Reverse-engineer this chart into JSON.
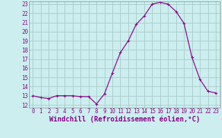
{
  "hours": [
    0,
    1,
    2,
    3,
    4,
    5,
    6,
    7,
    8,
    9,
    10,
    11,
    12,
    13,
    14,
    15,
    16,
    17,
    18,
    19,
    20,
    21,
    22,
    23
  ],
  "values": [
    13.0,
    12.8,
    12.7,
    13.0,
    13.0,
    13.0,
    12.9,
    12.9,
    12.1,
    13.2,
    15.5,
    17.7,
    19.0,
    20.8,
    21.7,
    23.0,
    23.2,
    23.0,
    22.2,
    20.9,
    17.2,
    14.8,
    13.5,
    13.3
  ],
  "line_color": "#880088",
  "marker": "+",
  "bg_color": "#cceeee",
  "grid_color": "#aacccc",
  "xlabel": "Windchill (Refroidissement éolien,°C)",
  "xlabel_color": "#880088",
  "tick_color": "#880088",
  "ylim_min": 12,
  "ylim_max": 23,
  "yticks": [
    12,
    13,
    14,
    15,
    16,
    17,
    18,
    19,
    20,
    21,
    22,
    23
  ],
  "xticks": [
    0,
    1,
    2,
    3,
    4,
    5,
    6,
    7,
    8,
    9,
    10,
    11,
    12,
    13,
    14,
    15,
    16,
    17,
    18,
    19,
    20,
    21,
    22,
    23
  ],
  "tick_fontsize": 5.5,
  "xlabel_fontsize": 7.0,
  "line_width": 0.9,
  "marker_size": 3,
  "marker_edge_width": 0.8
}
